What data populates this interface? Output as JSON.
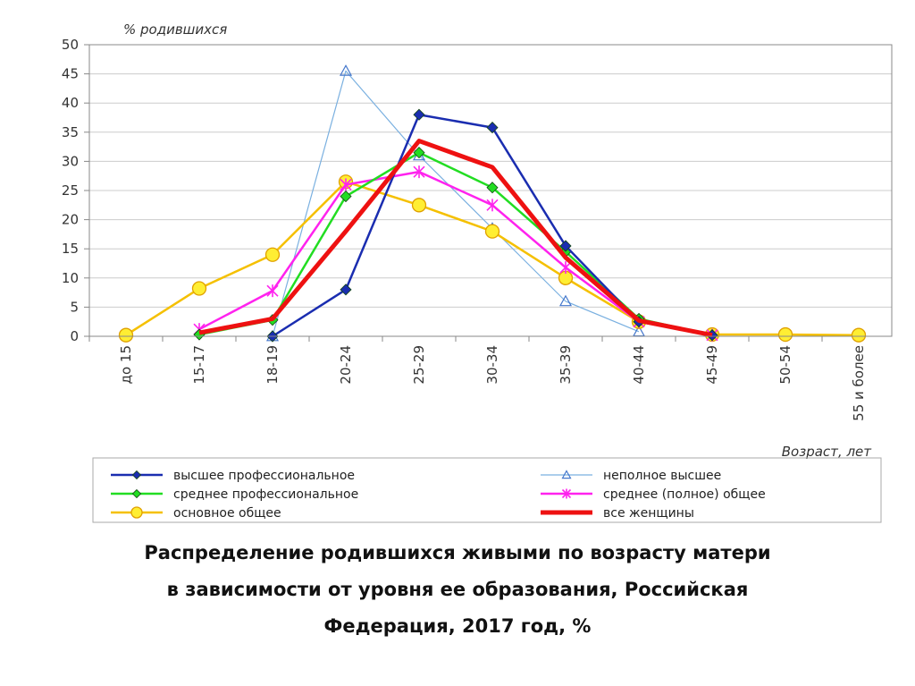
{
  "chart_data": {
    "type": "line",
    "ylabel": "% родившихся",
    "xlabel": "Возраст, лет",
    "ylim": [
      0,
      50
    ],
    "yticks": [
      0,
      5,
      10,
      15,
      20,
      25,
      30,
      35,
      40,
      45,
      50
    ],
    "grid": true,
    "legend_position": "bottom",
    "categories": [
      "до 15",
      "15-17",
      "18-19",
      "20-24",
      "25-29",
      "30-34",
      "35-39",
      "40-44",
      "45-49",
      "50-54",
      "55 и более"
    ],
    "series": [
      {
        "name": "высшее профессиональное",
        "color": "#1a2db0",
        "marker": "diamond",
        "values": [
          null,
          null,
          0,
          8,
          38,
          35.8,
          15.5,
          2.5,
          0.2,
          null,
          null
        ]
      },
      {
        "name": "неполное высшее",
        "color": "#7ab0e0",
        "marker": "triangle",
        "values": [
          null,
          null,
          0,
          45.5,
          31,
          18.5,
          6,
          0.8,
          null,
          null,
          null
        ]
      },
      {
        "name": "среднее профессиональное",
        "color": "#22dd22",
        "marker": "diamond",
        "values": [
          null,
          0.3,
          2.8,
          24,
          31.5,
          25.5,
          14.5,
          3,
          0.2,
          null,
          null
        ]
      },
      {
        "name": "среднее (полное) общее",
        "color": "#ff22ee",
        "marker": "star",
        "values": [
          null,
          1.2,
          7.8,
          26,
          28.2,
          22.5,
          11.8,
          2.5,
          0.2,
          null,
          null
        ]
      },
      {
        "name": "основное общее",
        "color": "#f5c000",
        "marker": "circle",
        "values": [
          0.2,
          8.2,
          14,
          26.5,
          22.5,
          18,
          10,
          2.5,
          0.3,
          0.3,
          0.2
        ]
      },
      {
        "name": "все женщины",
        "color": "#ee1111",
        "marker": "none",
        "values": [
          null,
          0.6,
          3,
          18,
          33.5,
          29,
          13.5,
          2.7,
          0.2,
          null,
          null
        ]
      }
    ]
  },
  "caption": {
    "line1": "Распределение родившихся живыми по возрасту матери",
    "line2": "в зависимости от уровня ее образования, Российская",
    "line3": "Федерация, 2017 год, %"
  }
}
